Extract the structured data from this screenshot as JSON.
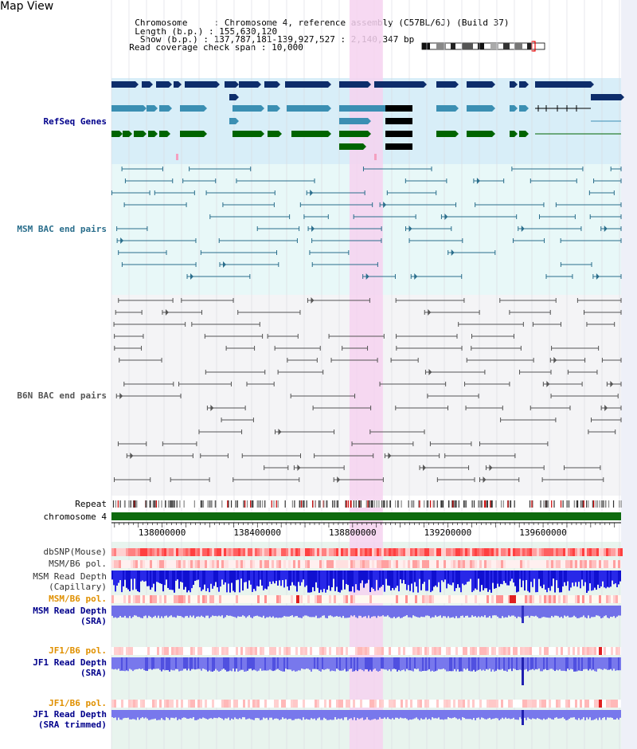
{
  "header": {
    "title": "Map View",
    "info_rows": [
      {
        "key": "Chromosome    ",
        "value": "Chromosome 4, reference assembly (C57BL/6J) (Build 37)"
      },
      {
        "key": "Length (b.p.)",
        "value": "155,630,120"
      },
      {
        "key": " Show (b.p.)",
        "value": "137,787,181-139,927,527 : 2,140,347 bp"
      },
      {
        "key": "Read coverage check span",
        "value": "10,000"
      }
    ]
  },
  "tracks": {
    "refseq": "RefSeq Genes",
    "msm_bac": "MSM BAC end pairs",
    "b6n_bac": "B6N BAC end pairs",
    "repeat": "Repeat",
    "chromosome": "chromosome 4",
    "dbsnp": "dbSNP(Mouse)",
    "msm_b6_pol_1": "MSM/B6 pol.",
    "msm_read_cap_1": "MSM Read Depth",
    "msm_read_cap_2": "(Capillary)",
    "msm_b6_pol_2": "MSM/B6 pol.",
    "msm_read_sra_1": "MSM Read Depth",
    "msm_read_sra_2": "(SRA)",
    "jf1_b6_pol_1": "JF1/B6 pol.",
    "jf1_read_sra_1": "JF1 Read Depth",
    "jf1_read_sra_2": "(SRA)",
    "jf1_b6_pol_2": "JF1/B6 pol.",
    "jf1_read_trim_1": "JF1 Read Depth",
    "jf1_read_trim_2": "(SRA trimmed)"
  },
  "axis": {
    "ticks": [
      {
        "value": 138000000,
        "label": "138000000"
      },
      {
        "value": 138400000,
        "label": "138400000"
      },
      {
        "value": 138800000,
        "label": "138800000"
      },
      {
        "value": 139200000,
        "label": "139200000"
      },
      {
        "value": 139600000,
        "label": "139600000"
      }
    ],
    "start": 137787181,
    "end": 139927527
  },
  "highlight": {
    "start": 138787000,
    "end": 138927000
  },
  "colors": {
    "refseq_dark": "#0d2d6b",
    "refseq_teal": "#3b8fb3",
    "refseq_green": "#006400",
    "msm_line": "#2a6e8c",
    "b6n_line": "#555555",
    "highlight": "#f6d2f0",
    "chrom": "#0e6b0e",
    "label_blue": "#00008b",
    "label_teal": "#2a6e8c",
    "label_grey": "#555555",
    "label_orange": "#e09000"
  }
}
